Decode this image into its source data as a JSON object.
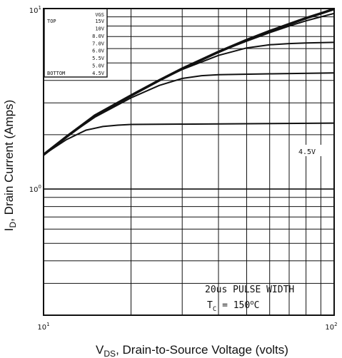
{
  "chart_data": {
    "type": "line",
    "xscale": "log",
    "yscale": "log",
    "xlim": [
      10,
      100
    ],
    "ylim": [
      0.2,
      10
    ],
    "grid": true,
    "x_tick_labels": [
      {
        "value": 10,
        "base": "10",
        "exp": "1"
      },
      {
        "value": 100,
        "base": "10",
        "exp": "2"
      }
    ],
    "y_tick_labels": [
      {
        "value": 10,
        "base": "10",
        "exp": "1"
      },
      {
        "value": 1,
        "base": "10",
        "exp": "0"
      }
    ],
    "xlabel": {
      "main": "V",
      "sub": "DS",
      "rest": ", Drain-to-Source Voltage (volts)"
    },
    "ylabel": {
      "main": "I",
      "sub": "D",
      "rest": ", Drain Current (Amps)"
    },
    "legend": {
      "placement": "top-left",
      "header": "VGS",
      "top_label": "TOP",
      "bottom_label": "BOTTOM",
      "entries": [
        "15V",
        "10V",
        "8.0V",
        "7.0V",
        "6.0V",
        "5.5V",
        "5.0V",
        "4.5V"
      ]
    },
    "annotation": {
      "pulse": "20us PULSE WIDTH",
      "temp_main": "T",
      "temp_sub": "C",
      "temp_value": " = 150",
      "temp_sup": "o",
      "temp_unit": "C"
    },
    "series": [
      {
        "label": "",
        "bold": true,
        "points": [
          [
            10,
            1.55
          ],
          [
            12,
            1.95
          ],
          [
            15,
            2.55
          ],
          [
            20,
            3.3
          ],
          [
            25,
            4.0
          ],
          [
            30,
            4.65
          ],
          [
            40,
            5.75
          ],
          [
            50,
            6.7
          ],
          [
            60,
            7.5
          ],
          [
            70,
            8.2
          ],
          [
            80,
            8.85
          ],
          [
            90,
            9.4
          ],
          [
            100,
            9.95
          ]
        ]
      },
      {
        "label": "",
        "bold": false,
        "points": [
          [
            10,
            1.55
          ],
          [
            12,
            1.95
          ],
          [
            15,
            2.55
          ],
          [
            20,
            3.3
          ],
          [
            25,
            4.0
          ],
          [
            30,
            4.65
          ],
          [
            40,
            5.75
          ],
          [
            50,
            6.6
          ],
          [
            60,
            7.35
          ],
          [
            70,
            8.0
          ],
          [
            80,
            8.55
          ],
          [
            90,
            9.0
          ],
          [
            100,
            9.4
          ]
        ]
      },
      {
        "label": "",
        "bold": false,
        "points": [
          [
            10,
            1.55
          ],
          [
            12,
            1.95
          ],
          [
            15,
            2.55
          ],
          [
            20,
            3.3
          ],
          [
            25,
            4.0
          ],
          [
            30,
            4.6
          ],
          [
            40,
            5.5
          ],
          [
            50,
            6.05
          ],
          [
            60,
            6.3
          ],
          [
            70,
            6.4
          ],
          [
            80,
            6.45
          ],
          [
            100,
            6.5
          ]
        ]
      },
      {
        "label": "",
        "bold": false,
        "points": [
          [
            10,
            1.55
          ],
          [
            12,
            1.95
          ],
          [
            15,
            2.5
          ],
          [
            20,
            3.2
          ],
          [
            25,
            3.75
          ],
          [
            30,
            4.1
          ],
          [
            35,
            4.25
          ],
          [
            40,
            4.3
          ],
          [
            60,
            4.35
          ],
          [
            100,
            4.4
          ]
        ]
      },
      {
        "label": "4.5V",
        "bold": false,
        "points": [
          [
            10,
            1.55
          ],
          [
            12,
            1.88
          ],
          [
            14,
            2.12
          ],
          [
            16,
            2.22
          ],
          [
            18,
            2.26
          ],
          [
            20,
            2.28
          ],
          [
            50,
            2.3
          ],
          [
            100,
            2.32
          ]
        ]
      }
    ]
  }
}
